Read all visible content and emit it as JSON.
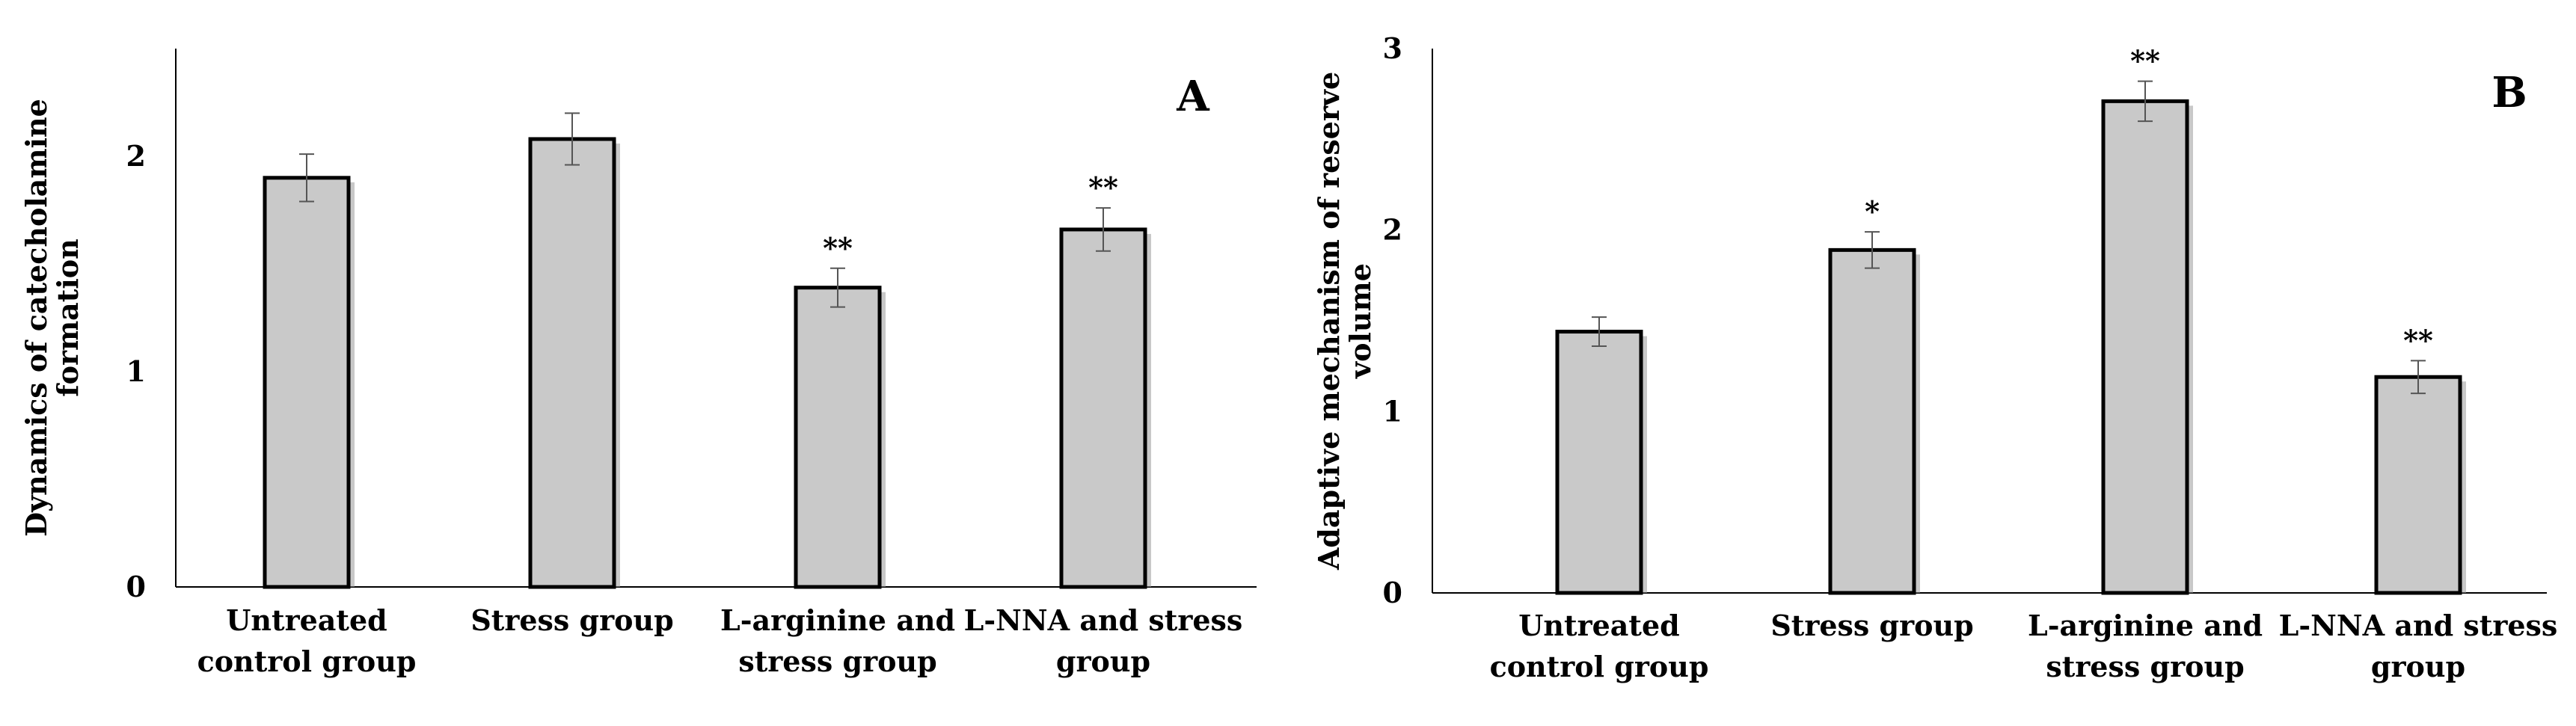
{
  "colors": {
    "bar_fill": "#c9c9c9",
    "bar_stroke": "#000000",
    "error_bar": "#555555",
    "axis": "#000000"
  },
  "chart_data": [
    {
      "type": "bar",
      "panel_label": "A",
      "title": "",
      "xlabel": "",
      "ylabel_lines": [
        "Dynamics of catecholamine",
        "formation"
      ],
      "ylim": [
        0,
        2.5
      ],
      "yticks": [
        0,
        1,
        2
      ],
      "categories": [
        [
          "Untreated",
          "control group"
        ],
        [
          "Stress group"
        ],
        [
          "L-arginine and",
          "stress group"
        ],
        [
          "L-NNA and stress",
          "group"
        ]
      ],
      "values": [
        1.9,
        2.08,
        1.39,
        1.66
      ],
      "errors": [
        0.11,
        0.12,
        0.09,
        0.1
      ],
      "significance": [
        "",
        "",
        "**",
        "**"
      ],
      "grid": false
    },
    {
      "type": "bar",
      "panel_label": "B",
      "title": "",
      "xlabel": "",
      "ylabel_lines": [
        "Adaptive mechanism of reserve",
        "volume"
      ],
      "ylim": [
        0,
        3
      ],
      "yticks": [
        0,
        1,
        2,
        3
      ],
      "categories": [
        [
          "Untreated",
          "control group"
        ],
        [
          "Stress group"
        ],
        [
          "L-arginine and",
          "stress group"
        ],
        [
          "L-NNA and stress",
          "group"
        ]
      ],
      "values": [
        1.44,
        1.89,
        2.71,
        1.19
      ],
      "errors": [
        0.08,
        0.1,
        0.11,
        0.09
      ],
      "significance": [
        "",
        "*",
        "**",
        "**"
      ],
      "grid": false
    }
  ]
}
